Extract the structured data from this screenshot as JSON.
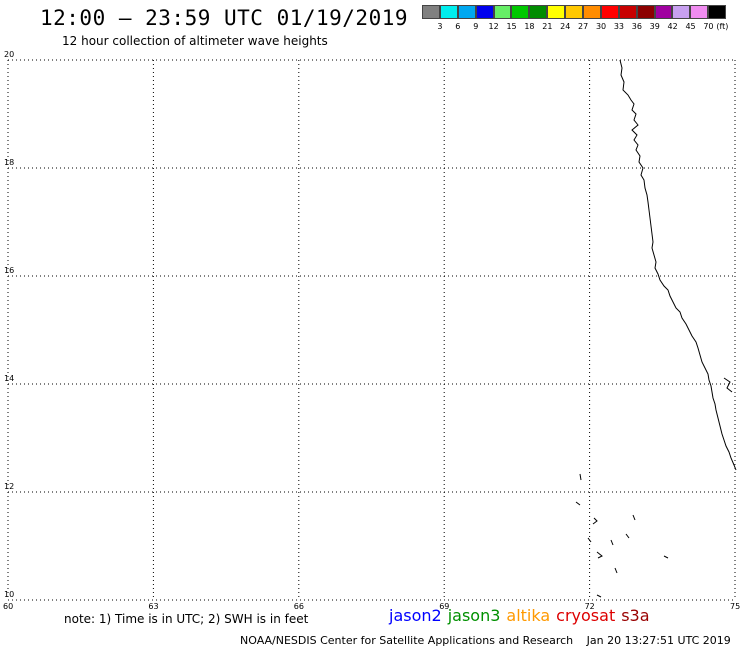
{
  "header": {
    "title": "12:00 — 23:59 UTC 01/19/2019",
    "subtitle": "12 hour collection of altimeter wave heights"
  },
  "legend": {
    "labels": [
      "3",
      "6",
      "9",
      "12",
      "15",
      "18",
      "21",
      "24",
      "27",
      "30",
      "33",
      "36",
      "39",
      "42",
      "45",
      "70"
    ],
    "unit": "(ft)",
    "colors": [
      "#808080",
      "#00eeee",
      "#00a8f0",
      "#0000ee",
      "#66ee66",
      "#00c800",
      "#008c00",
      "#ffff00",
      "#ffc800",
      "#ff8c00",
      "#ff0000",
      "#c80000",
      "#8c0000",
      "#a000a0",
      "#c8a0f0",
      "#f08cf0",
      "#000000"
    ]
  },
  "axes": {
    "y_ticks": [
      "20",
      "18",
      "16",
      "14",
      "12",
      "10"
    ],
    "x_ticks": [
      "60",
      "63",
      "66",
      "69",
      "72",
      "75"
    ]
  },
  "map": {
    "lon_range": [
      60,
      75
    ],
    "lat_range": [
      10,
      20
    ],
    "coastline_color": "#000000",
    "grid": "dotted"
  },
  "footer": {
    "note": "note: 1) Time is in UTC; 2) SWH is in feet",
    "satellites": [
      {
        "name": "jason2",
        "color": "#0000ff"
      },
      {
        "name": "jason3",
        "color": "#009000"
      },
      {
        "name": "altika",
        "color": "#ff9900"
      },
      {
        "name": "cryosat",
        "color": "#dd0000"
      },
      {
        "name": "s3a",
        "color": "#990000"
      }
    ],
    "credit": "NOAA/NESDIS Center for Satellite Applications and Research",
    "timestamp": "Jan 20 13:27:51 UTC 2019"
  }
}
